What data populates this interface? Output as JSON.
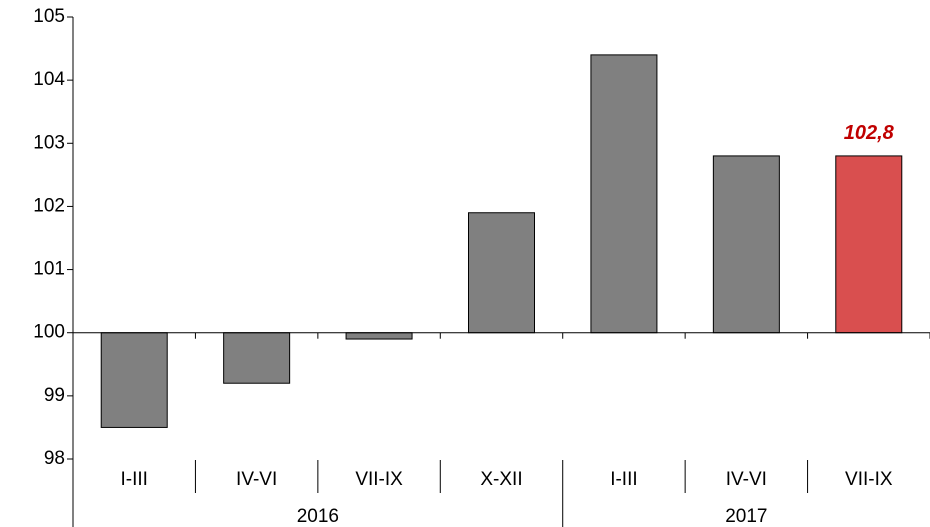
{
  "chart_data": {
    "type": "bar",
    "groups": [
      {
        "label": "2016",
        "categories": [
          "I-III",
          "IV-VI",
          "VII-IX",
          "X-XII"
        ]
      },
      {
        "label": "2017",
        "categories": [
          "I-III",
          "IV-VI",
          "VII-IX"
        ]
      }
    ],
    "values": [
      98.5,
      99.2,
      99.9,
      101.9,
      104.4,
      102.8,
      102.8
    ],
    "value_labels": [
      null,
      null,
      null,
      null,
      null,
      null,
      "102,8"
    ],
    "colors": [
      "#808080",
      "#808080",
      "#808080",
      "#808080",
      "#808080",
      "#808080",
      "#d94f4f"
    ],
    "label_color": "#c00000",
    "baseline": 100,
    "ylim": [
      98,
      105
    ],
    "yticks": [
      98,
      99,
      100,
      101,
      102,
      103,
      104,
      105
    ],
    "grid": false
  }
}
